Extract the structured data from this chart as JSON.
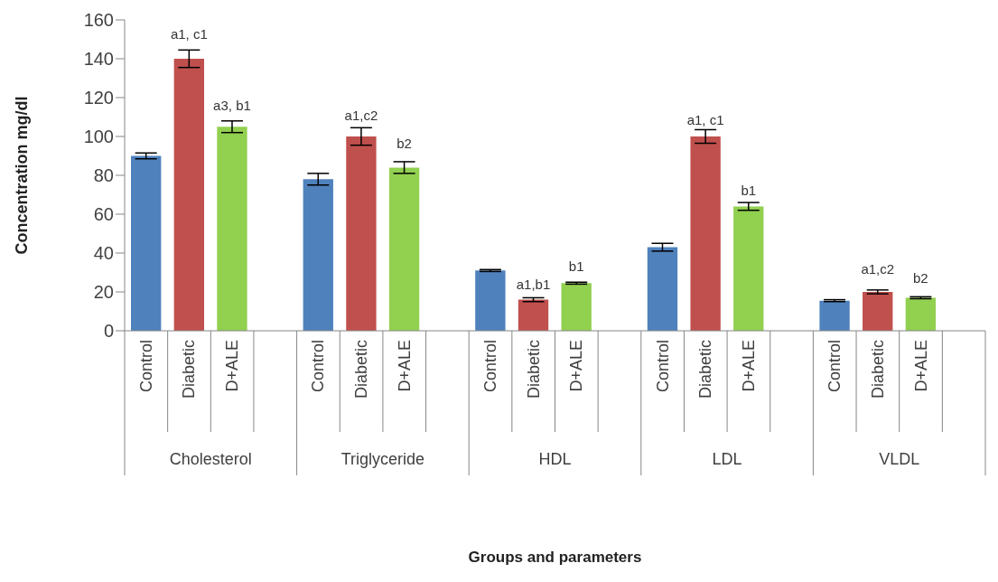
{
  "chart_data": {
    "type": "bar",
    "ylabel": "Concentration mg/dl",
    "categories": [
      "Control",
      "Diabetic",
      "D+ALE",
      null,
      "Control",
      "Diabetic",
      "D+ALE",
      null,
      "Control",
      "Diabetic",
      "D+ALE",
      null,
      "Control",
      "Diabetic",
      "D+ALE",
      null,
      "Control",
      "Diabetic",
      "D+ALE",
      null
    ],
    "values": [
      90,
      140,
      105,
      null,
      78,
      100,
      84,
      null,
      31,
      16,
      24.5,
      null,
      43,
      100,
      64,
      null,
      15.5,
      20,
      17,
      null
    ],
    "colors": [
      "#4f81bd",
      "#c0504d",
      "#92d050",
      null,
      "#4f81bd",
      "#c0504d",
      "#92d050",
      null,
      "#4f81bd",
      "#c0504d",
      "#92d050",
      null,
      "#4f81bd",
      "#c0504d",
      "#92d050",
      null,
      "#4f81bd",
      "#c0504d",
      "#92d050",
      null
    ],
    "errors": [
      1.5,
      4.5,
      3,
      null,
      3,
      4.5,
      3,
      null,
      0.5,
      1,
      0.5,
      null,
      2,
      3.5,
      2,
      null,
      0.5,
      1,
      0.5,
      null
    ],
    "value_labels": [
      null,
      "a1, c1",
      "a3, b1",
      null,
      null,
      "a1,c2",
      "b2",
      null,
      null,
      "a1,b1",
      "b1",
      null,
      null,
      "a1, c1",
      "b1",
      null,
      null,
      "a1,c2",
      "b2",
      null
    ],
    "annotations": [
      "Cholesterol",
      "Triglyceride",
      "HDL",
      "LDL",
      "VLDL",
      "Groups and parameters"
    ],
    "ylim": [
      0,
      160
    ],
    "yticks": [
      0,
      20,
      40,
      60,
      80,
      100,
      120,
      140,
      160
    ]
  }
}
